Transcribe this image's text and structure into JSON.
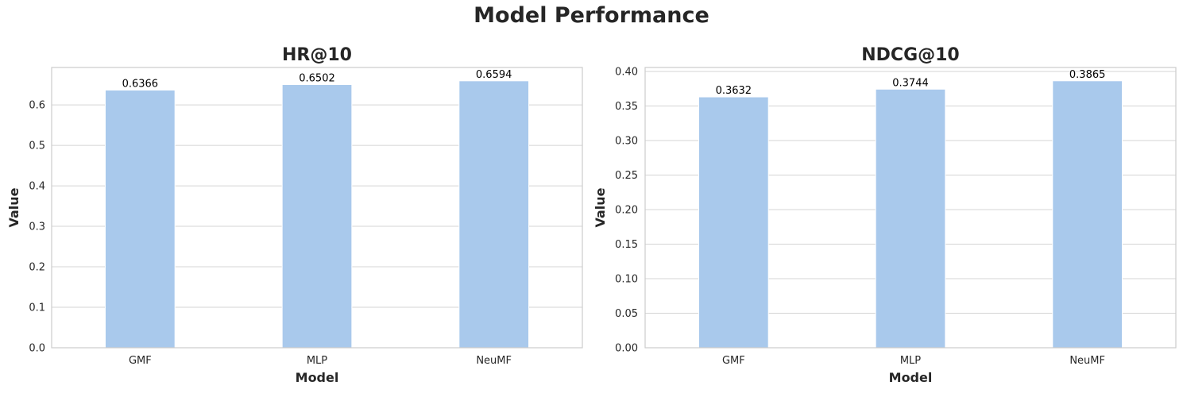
{
  "suptitle": "Model Performance",
  "colors": {
    "bar": "#a9c9ec",
    "grid": "#d4d4d4",
    "spine": "#cccccc",
    "text": "#262626"
  },
  "chart_data": [
    {
      "type": "bar",
      "title": "HR@10",
      "xlabel": "Model",
      "ylabel": "Value",
      "categories": [
        "GMF",
        "MLP",
        "NeuMF"
      ],
      "values": [
        0.6366,
        0.6502,
        0.6594
      ],
      "data_labels": [
        "0.6366",
        "0.6502",
        "0.6594"
      ],
      "ylim": [
        0,
        0.6924
      ],
      "yticks": [
        0.0,
        0.1,
        0.2,
        0.3,
        0.4,
        0.5,
        0.6
      ],
      "ytick_labels": [
        "0.0",
        "0.1",
        "0.2",
        "0.3",
        "0.4",
        "0.5",
        "0.6"
      ],
      "grid": true
    },
    {
      "type": "bar",
      "title": "NDCG@10",
      "xlabel": "Model",
      "ylabel": "Value",
      "categories": [
        "GMF",
        "MLP",
        "NeuMF"
      ],
      "values": [
        0.3632,
        0.3744,
        0.3865
      ],
      "data_labels": [
        "0.3632",
        "0.3744",
        "0.3865"
      ],
      "ylim": [
        0,
        0.4058
      ],
      "yticks": [
        0.0,
        0.05,
        0.1,
        0.15,
        0.2,
        0.25,
        0.3,
        0.35,
        0.4
      ],
      "ytick_labels": [
        "0.00",
        "0.05",
        "0.10",
        "0.15",
        "0.20",
        "0.25",
        "0.30",
        "0.35",
        "0.40"
      ],
      "grid": true
    }
  ]
}
